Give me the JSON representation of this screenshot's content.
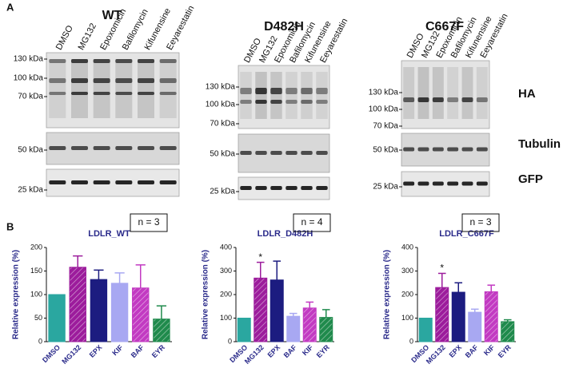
{
  "panel_a": {
    "label": "A",
    "row_labels": [
      "HA",
      "Tubulin",
      "GFP"
    ],
    "blots": [
      {
        "title": "WT",
        "lanes": [
          "DMSO",
          "MG132",
          "Epoxomicin",
          "Bafilomycin",
          "Kifunensine",
          "Eeyarestatin"
        ],
        "markers": [
          "130 kDa",
          "100 kDa",
          "70 kDa",
          "50 kDa",
          "25 kDa"
        ]
      },
      {
        "title": "D482H",
        "lanes": [
          "DMSO",
          "MG132",
          "Epoxomicin",
          "Bafilomycin",
          "Kifunensine",
          "Eeyarestatin"
        ],
        "markers": [
          "130 kDa",
          "100 kDa",
          "70 kDa",
          "50 kDa",
          "25 kDa"
        ]
      },
      {
        "title": "C667F",
        "lanes": [
          "DMSO",
          "MG132",
          "Epoxomicin",
          "Bafilomycin",
          "Kifunensine",
          "Eeyarestatin"
        ],
        "markers": [
          "130 kDa",
          "100 kDa",
          "70 kDa",
          "50 kDa",
          "25 kDa"
        ]
      }
    ]
  },
  "panel_b": {
    "label": "B"
  },
  "chart_data": [
    {
      "type": "bar",
      "title": "LDLR_WT",
      "annotation": "n = 3",
      "ylabel": "Relative expression (%)",
      "categories": [
        "DMSO",
        "MG132",
        "EPX",
        "KIF",
        "BAF",
        "EYR"
      ],
      "values": [
        100,
        158,
        132,
        124,
        114,
        48
      ],
      "errors": [
        0,
        24,
        20,
        22,
        49,
        28
      ],
      "colors": [
        "#2aa7a0",
        "#9c1c9c",
        "#1c1c80",
        "#a8a8f2",
        "#c23ac2",
        "#1f8a4c"
      ],
      "hatch": [
        false,
        true,
        false,
        false,
        true,
        true
      ],
      "ylim": [
        0,
        200
      ],
      "yticks": [
        0,
        50,
        100,
        150,
        200
      ]
    },
    {
      "type": "bar",
      "title": "LDLR_D482H",
      "annotation": "n = 4",
      "ylabel": "Relative expression (%)",
      "categories": [
        "DMSO",
        "MG132",
        "EPX",
        "BAF",
        "KIF",
        "EYR"
      ],
      "values": [
        100,
        270,
        262,
        108,
        143,
        103
      ],
      "errors": [
        0,
        67,
        80,
        12,
        25,
        33
      ],
      "colors": [
        "#2aa7a0",
        "#9c1c9c",
        "#1c1c80",
        "#a8a8f2",
        "#c23ac2",
        "#1f8a4c"
      ],
      "hatch": [
        false,
        true,
        false,
        false,
        true,
        true
      ],
      "significance": [
        null,
        "*",
        null,
        null,
        null,
        null
      ],
      "ylim": [
        0,
        400
      ],
      "yticks": [
        0,
        100,
        200,
        300,
        400
      ]
    },
    {
      "type": "bar",
      "title": "LDLR_C667F",
      "annotation": "n = 3",
      "ylabel": "Relative expression (%)",
      "categories": [
        "DMSO",
        "MG132",
        "EPX",
        "BAF",
        "KIF",
        "EYR"
      ],
      "values": [
        100,
        230,
        210,
        125,
        212,
        85
      ],
      "errors": [
        0,
        60,
        40,
        13,
        28,
        8
      ],
      "colors": [
        "#2aa7a0",
        "#9c1c9c",
        "#1c1c80",
        "#a8a8f2",
        "#c23ac2",
        "#1f8a4c"
      ],
      "hatch": [
        false,
        true,
        false,
        false,
        true,
        true
      ],
      "significance": [
        null,
        "*",
        null,
        null,
        null,
        null
      ],
      "ylim": [
        0,
        400
      ],
      "yticks": [
        0,
        100,
        200,
        300,
        400
      ]
    }
  ]
}
